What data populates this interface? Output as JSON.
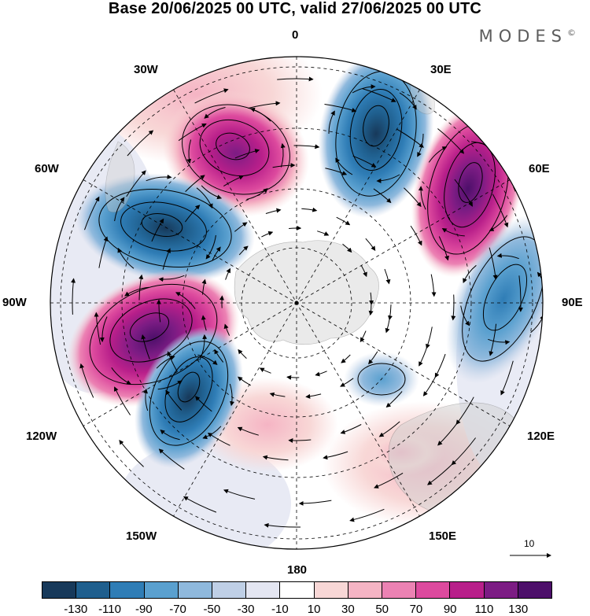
{
  "title": "Base 20/06/2025 00 UTC, valid 27/06/2025 00 UTC",
  "brand": "MODES",
  "brand_mark": "©",
  "longitude_labels": {
    "lon_0": "0",
    "lon_30e": "30E",
    "lon_60e": "60E",
    "lon_90e": "90E",
    "lon_120e": "120E",
    "lon_150e": "150E",
    "lon_180": "180",
    "lon_150w": "150W",
    "lon_120w": "120W",
    "lon_90w": "90W",
    "lon_60w": "60W",
    "lon_30w": "30W"
  },
  "reference_vector": {
    "value": "10"
  },
  "colorbar": {
    "ticks": [
      "-130",
      "-110",
      "-90",
      "-70",
      "-50",
      "-30",
      "-10",
      "10",
      "30",
      "50",
      "70",
      "90",
      "110",
      "130"
    ],
    "colors": [
      "#17395a",
      "#1f5f8e",
      "#2f7db6",
      "#5aa0cf",
      "#8fb9dd",
      "#bfcfe6",
      "#e4e6f2",
      "#ffffff",
      "#f8d7d6",
      "#f5b4c4",
      "#ec82b3",
      "#dd4a9e",
      "#b81f8a",
      "#7c1c84",
      "#4d0f6a"
    ]
  },
  "anomaly_centers": [
    {
      "name": "low-north",
      "sign": "negative",
      "level": -130
    },
    {
      "name": "high-nnw",
      "sign": "positive",
      "level": 110
    },
    {
      "name": "high-ne",
      "sign": "positive",
      "level": 130
    },
    {
      "name": "low-east",
      "sign": "negative",
      "level": -90
    },
    {
      "name": "low-west",
      "sign": "negative",
      "level": -130
    },
    {
      "name": "high-west",
      "sign": "positive",
      "level": 130
    },
    {
      "name": "low-southwest",
      "sign": "negative",
      "level": -130
    },
    {
      "name": "low-small-southeast",
      "sign": "negative",
      "level": -70
    },
    {
      "name": "high-weak-southeast",
      "sign": "positive",
      "level": 50
    }
  ]
}
